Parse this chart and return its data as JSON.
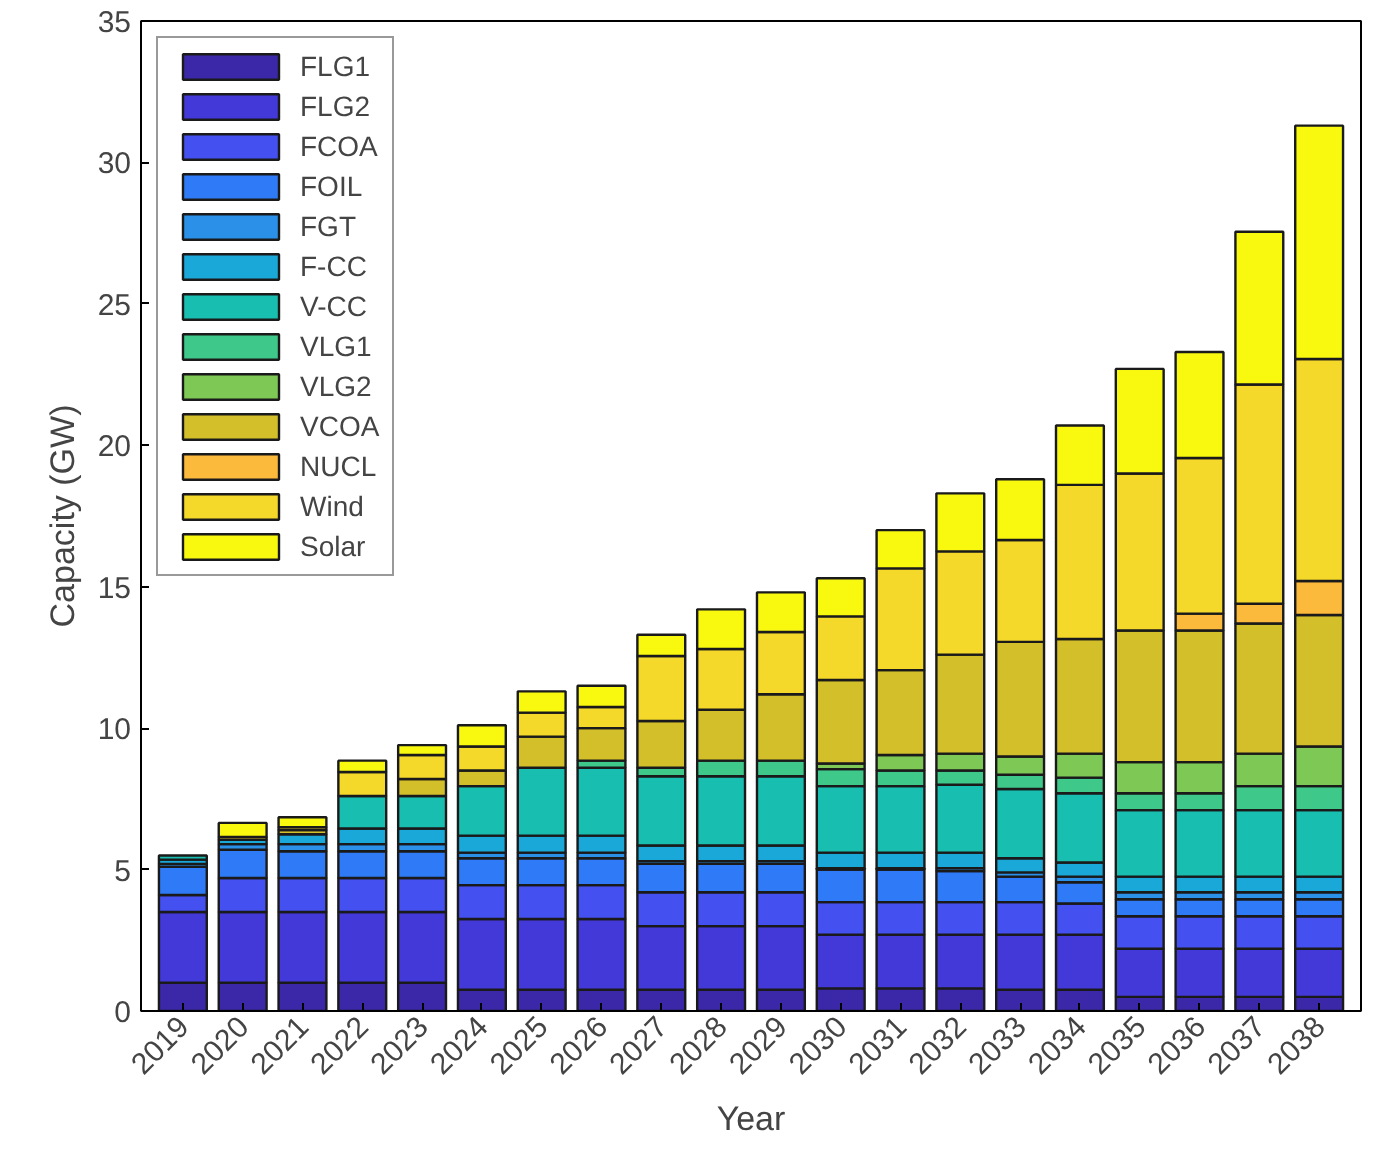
{
  "chart_data": {
    "type": "bar",
    "stacked": true,
    "xlabel": "Year",
    "ylabel": "Capacity (GW)",
    "categories": [
      "2019",
      "2020",
      "2021",
      "2022",
      "2023",
      "2024",
      "2025",
      "2026",
      "2027",
      "2028",
      "2029",
      "2030",
      "2031",
      "2032",
      "2033",
      "2034",
      "2035",
      "2036",
      "2037",
      "2038"
    ],
    "ylim": [
      0,
      35
    ],
    "yticks": [
      0,
      5,
      10,
      15,
      20,
      25,
      30,
      35
    ],
    "grid": false,
    "legend": "top left",
    "series": [
      {
        "name": "FLG1",
        "color": "#3b28a8",
        "values": [
          1.0,
          1.0,
          1.0,
          1.0,
          1.0,
          0.75,
          0.75,
          0.75,
          0.75,
          0.75,
          0.75,
          0.8,
          0.8,
          0.8,
          0.75,
          0.75,
          0.5,
          0.5,
          0.5,
          0.5
        ]
      },
      {
        "name": "FLG2",
        "color": "#4338d8",
        "values": [
          2.5,
          2.5,
          2.5,
          2.5,
          2.5,
          2.5,
          2.5,
          2.5,
          2.25,
          2.25,
          2.25,
          1.9,
          1.9,
          1.9,
          1.95,
          1.95,
          1.7,
          1.7,
          1.7,
          1.7
        ]
      },
      {
        "name": "FCOA",
        "color": "#4450f0",
        "values": [
          0.6,
          1.2,
          1.2,
          1.2,
          1.2,
          1.2,
          1.2,
          1.2,
          1.2,
          1.2,
          1.2,
          1.15,
          1.15,
          1.15,
          1.15,
          1.1,
          1.15,
          1.15,
          1.15,
          1.15
        ]
      },
      {
        "name": "FOIL",
        "color": "#2f7bf7",
        "values": [
          1.0,
          1.0,
          0.95,
          0.95,
          0.95,
          0.95,
          0.95,
          0.95,
          1.0,
          1.0,
          1.0,
          1.15,
          1.15,
          1.1,
          0.9,
          0.75,
          0.6,
          0.6,
          0.6,
          0.6
        ]
      },
      {
        "name": "FGT",
        "color": "#2a90e8",
        "values": [
          0.1,
          0.2,
          0.25,
          0.25,
          0.25,
          0.2,
          0.2,
          0.2,
          0.1,
          0.1,
          0.1,
          0.05,
          0.05,
          0.1,
          0.15,
          0.2,
          0.25,
          0.25,
          0.25,
          0.25
        ]
      },
      {
        "name": "F-CC",
        "color": "#1aa8d8",
        "values": [
          0.15,
          0.15,
          0.35,
          0.55,
          0.55,
          0.6,
          0.6,
          0.6,
          0.55,
          0.55,
          0.55,
          0.55,
          0.55,
          0.55,
          0.5,
          0.5,
          0.55,
          0.55,
          0.55,
          0.55
        ]
      },
      {
        "name": "V-CC",
        "color": "#18bfb0",
        "values": [
          0.15,
          null,
          null,
          1.15,
          1.15,
          1.75,
          2.4,
          2.4,
          2.45,
          2.45,
          2.45,
          2.35,
          2.35,
          2.4,
          2.45,
          2.45,
          2.35,
          2.35,
          2.35,
          2.35
        ]
      },
      {
        "name": "VLG1",
        "color": "#3ec98a",
        "values": [
          null,
          null,
          null,
          null,
          null,
          null,
          null,
          0.25,
          0.3,
          0.55,
          0.55,
          0.6,
          0.55,
          0.5,
          0.5,
          0.55,
          0.6,
          0.6,
          0.85,
          0.85
        ]
      },
      {
        "name": "VLG2",
        "color": "#7ec856",
        "values": [
          null,
          null,
          null,
          null,
          null,
          null,
          null,
          null,
          null,
          null,
          null,
          0.2,
          0.55,
          0.6,
          0.65,
          0.85,
          1.1,
          1.1,
          1.15,
          1.4
        ]
      },
      {
        "name": "VCOA",
        "color": "#d2bf2a",
        "values": [
          null,
          null,
          0.15,
          null,
          0.6,
          0.55,
          1.1,
          1.15,
          1.65,
          1.8,
          2.35,
          2.95,
          3.0,
          3.5,
          4.05,
          4.05,
          4.65,
          4.65,
          4.6,
          4.65
        ]
      },
      {
        "name": "NUCL",
        "color": "#fcba3c",
        "values": [
          null,
          null,
          null,
          null,
          null,
          null,
          null,
          null,
          null,
          null,
          null,
          null,
          null,
          null,
          null,
          null,
          null,
          0.6,
          0.7,
          1.2
        ]
      },
      {
        "name": "Wind",
        "color": "#f5d92a",
        "values": [
          null,
          0.1,
          0.1,
          0.85,
          0.85,
          0.85,
          0.85,
          0.75,
          2.3,
          2.15,
          2.2,
          2.25,
          3.6,
          3.65,
          3.6,
          5.45,
          5.55,
          5.5,
          7.75,
          7.85
        ]
      },
      {
        "name": "Solar",
        "color": "#f9f910",
        "values": [
          null,
          0.5,
          0.35,
          0.4,
          0.35,
          0.75,
          0.75,
          0.75,
          0.75,
          1.4,
          1.4,
          1.35,
          1.35,
          2.05,
          2.15,
          2.1,
          3.7,
          3.75,
          5.4,
          8.25
        ]
      }
    ]
  }
}
